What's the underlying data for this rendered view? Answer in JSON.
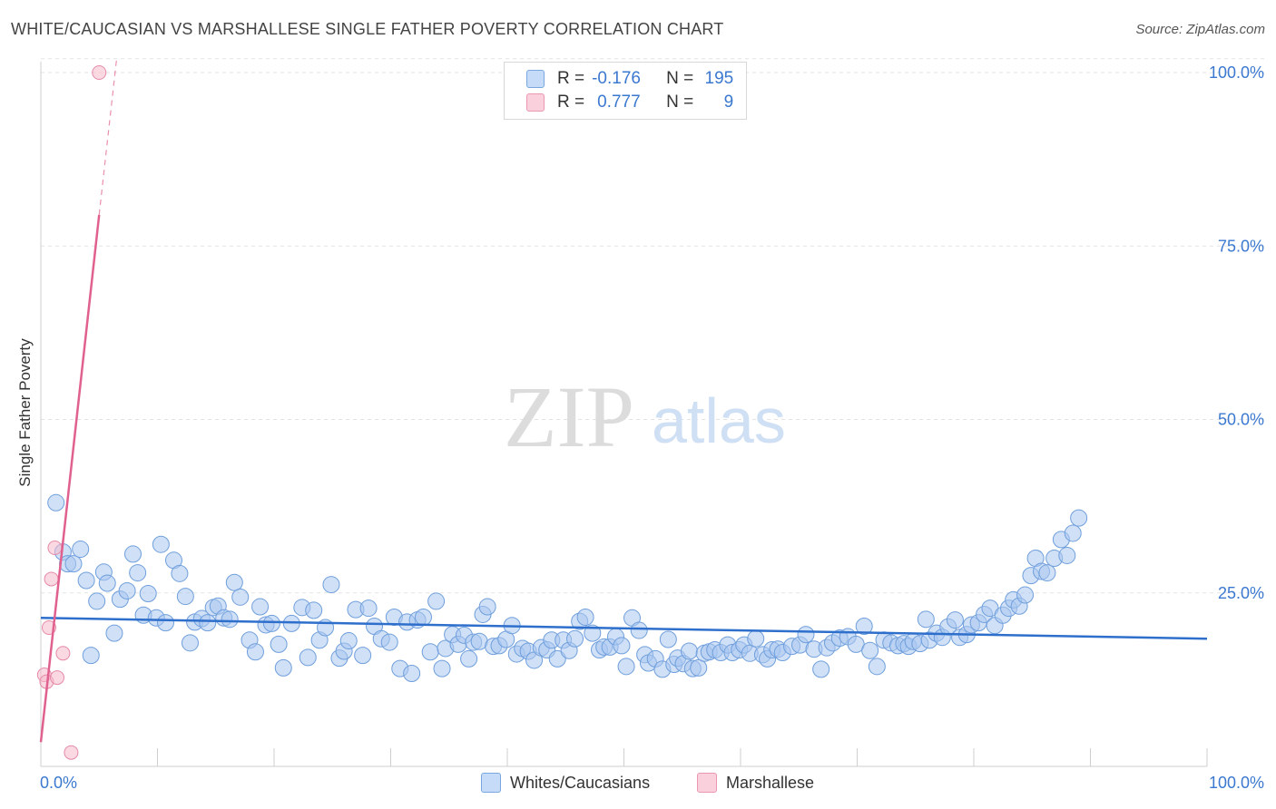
{
  "header": {
    "title": "WHITE/CAUCASIAN VS MARSHALLESE SINGLE FATHER POVERTY CORRELATION CHART",
    "source": "Source: ZipAtlas.com"
  },
  "watermark": {
    "zip": "ZIP",
    "atlas": "atlas"
  },
  "stats": [
    {
      "r_label": "R =",
      "r_value": "-0.176",
      "n_label": "N =",
      "n_value": "195",
      "color": "#a9c7f0"
    },
    {
      "r_label": "R =",
      "r_value": "0.777",
      "n_label": "N =",
      "n_value": "9",
      "color": "#f7b9cc"
    }
  ],
  "legend": [
    {
      "label": "Whites/Caucasians",
      "color": "#a9c7f0"
    },
    {
      "label": "Marshallese",
      "color": "#f7b9cc"
    }
  ],
  "chart_data": {
    "type": "scatter",
    "title": "WHITE/CAUCASIAN VS MARSHALLESE SINGLE FATHER POVERTY CORRELATION CHART",
    "xlabel": "",
    "ylabel": "Single Father Poverty",
    "xlim": [
      0,
      100
    ],
    "ylim": [
      0,
      100
    ],
    "x_tick_labels": [
      "0.0%",
      "100.0%"
    ],
    "y_ticks": [
      25,
      50,
      75,
      100
    ],
    "y_tick_labels": [
      "25.0%",
      "50.0%",
      "75.0%",
      "100.0%"
    ],
    "grid": true,
    "series": [
      {
        "name": "Whites/Caucasians",
        "color": "#a9c7f0",
        "stroke": "#6f9fdc",
        "trend": {
          "x0": 0,
          "y0": 21.4,
          "x1": 100,
          "y1": 18.4,
          "color": "#2f6fcc"
        },
        "points": [
          [
            1.3,
            38
          ],
          [
            1.9,
            30.9
          ],
          [
            2.3,
            29.2
          ],
          [
            2.8,
            29.2
          ],
          [
            3.4,
            31.3
          ],
          [
            3.9,
            26.8
          ],
          [
            4.3,
            16
          ],
          [
            4.8,
            23.8
          ],
          [
            5.4,
            28
          ],
          [
            5.7,
            26.4
          ],
          [
            6.3,
            19.2
          ],
          [
            6.8,
            24.1
          ],
          [
            7.4,
            25.3
          ],
          [
            7.9,
            30.6
          ],
          [
            8.3,
            27.9
          ],
          [
            8.8,
            21.8
          ],
          [
            9.2,
            24.9
          ],
          [
            9.9,
            21.4
          ],
          [
            10.3,
            32
          ],
          [
            10.7,
            20.7
          ],
          [
            11.4,
            29.7
          ],
          [
            11.9,
            27.8
          ],
          [
            12.4,
            24.5
          ],
          [
            12.8,
            17.8
          ],
          [
            13.2,
            20.8
          ],
          [
            13.8,
            21.3
          ],
          [
            14.3,
            20.7
          ],
          [
            14.8,
            22.9
          ],
          [
            15.2,
            23.1
          ],
          [
            15.7,
            21.4
          ],
          [
            16.2,
            21.2
          ],
          [
            16.6,
            26.5
          ],
          [
            17.1,
            24.4
          ],
          [
            17.9,
            18.2
          ],
          [
            18.4,
            16.5
          ],
          [
            18.8,
            23
          ],
          [
            19.3,
            20.4
          ],
          [
            19.8,
            20.6
          ],
          [
            20.4,
            17.6
          ],
          [
            20.8,
            14.2
          ],
          [
            21.5,
            20.6
          ],
          [
            22.4,
            22.9
          ],
          [
            22.9,
            15.7
          ],
          [
            23.4,
            22.5
          ],
          [
            23.9,
            18.2
          ],
          [
            24.4,
            20
          ],
          [
            24.9,
            26.2
          ],
          [
            25.6,
            15.6
          ],
          [
            26,
            16.6
          ],
          [
            26.4,
            18.1
          ],
          [
            27,
            22.6
          ],
          [
            27.6,
            16
          ],
          [
            28.1,
            22.8
          ],
          [
            28.6,
            20.2
          ],
          [
            29.2,
            18.4
          ],
          [
            29.9,
            17.9
          ],
          [
            30.3,
            21.5
          ],
          [
            30.8,
            14.1
          ],
          [
            31.4,
            20.8
          ],
          [
            31.8,
            13.4
          ],
          [
            32.3,
            21.1
          ],
          [
            32.8,
            21.5
          ],
          [
            33.4,
            16.5
          ],
          [
            33.9,
            23.8
          ],
          [
            34.4,
            14.1
          ],
          [
            34.7,
            17
          ],
          [
            35.3,
            19
          ],
          [
            35.8,
            17.6
          ],
          [
            36.3,
            18.9
          ],
          [
            36.7,
            15.5
          ],
          [
            37.1,
            17.9
          ],
          [
            37.6,
            18
          ],
          [
            37.9,
            21.9
          ],
          [
            38.3,
            23
          ],
          [
            38.8,
            17.3
          ],
          [
            39.3,
            17.4
          ],
          [
            39.9,
            18.3
          ],
          [
            40.4,
            20.3
          ],
          [
            40.8,
            16.2
          ],
          [
            41.3,
            17
          ],
          [
            41.8,
            16.6
          ],
          [
            42.3,
            15.3
          ],
          [
            42.9,
            17.1
          ],
          [
            43.4,
            16.8
          ],
          [
            43.8,
            18.2
          ],
          [
            44.3,
            15.5
          ],
          [
            44.8,
            18.2
          ],
          [
            45.3,
            16.7
          ],
          [
            45.8,
            18.4
          ],
          [
            46.2,
            20.9
          ],
          [
            46.7,
            21.5
          ],
          [
            47.3,
            19.2
          ],
          [
            47.9,
            16.8
          ],
          [
            48.3,
            17.2
          ],
          [
            48.8,
            17.2
          ],
          [
            49.3,
            18.7
          ],
          [
            49.8,
            17.4
          ],
          [
            50.2,
            14.4
          ],
          [
            50.7,
            21.4
          ],
          [
            51.3,
            19.6
          ],
          [
            51.8,
            16.1
          ],
          [
            52.1,
            14.9
          ],
          [
            52.7,
            15.5
          ],
          [
            53.3,
            14
          ],
          [
            53.8,
            18.3
          ],
          [
            54.3,
            14.7
          ],
          [
            54.6,
            15.6
          ],
          [
            55.1,
            14.8
          ],
          [
            55.6,
            16.6
          ],
          [
            55.9,
            14.1
          ],
          [
            56.4,
            14.2
          ],
          [
            56.9,
            16.3
          ],
          [
            57.3,
            16.5
          ],
          [
            57.8,
            16.8
          ],
          [
            58.3,
            16.4
          ],
          [
            58.9,
            17.5
          ],
          [
            59.3,
            16.4
          ],
          [
            59.9,
            16.8
          ],
          [
            60.3,
            17.5
          ],
          [
            60.8,
            16.3
          ],
          [
            61.3,
            18.4
          ],
          [
            61.9,
            16.1
          ],
          [
            62.3,
            15.5
          ],
          [
            62.7,
            16.8
          ],
          [
            63.2,
            16.9
          ],
          [
            63.6,
            16.4
          ],
          [
            64.4,
            17.3
          ],
          [
            65.1,
            17.5
          ],
          [
            65.6,
            19
          ],
          [
            66.3,
            16.9
          ],
          [
            66.9,
            14
          ],
          [
            67.4,
            17.1
          ],
          [
            67.9,
            17.8
          ],
          [
            68.5,
            18.5
          ],
          [
            69.2,
            18.7
          ],
          [
            69.9,
            17.6
          ],
          [
            70.6,
            20.2
          ],
          [
            71.1,
            16.7
          ],
          [
            71.7,
            14.4
          ],
          [
            72.3,
            18.2
          ],
          [
            72.9,
            17.8
          ],
          [
            73.5,
            17.4
          ],
          [
            74,
            17.7
          ],
          [
            74.4,
            17.3
          ],
          [
            74.8,
            18
          ],
          [
            75.4,
            17.7
          ],
          [
            75.9,
            21.2
          ],
          [
            76.2,
            18.2
          ],
          [
            76.8,
            19.2
          ],
          [
            77.3,
            18.6
          ],
          [
            77.8,
            20.1
          ],
          [
            78.4,
            21.1
          ],
          [
            78.8,
            18.6
          ],
          [
            79.4,
            19
          ],
          [
            79.8,
            20.4
          ],
          [
            80.4,
            20.7
          ],
          [
            80.9,
            21.9
          ],
          [
            81.4,
            22.8
          ],
          [
            81.8,
            20.3
          ],
          [
            82.5,
            21.8
          ],
          [
            83,
            22.8
          ],
          [
            83.4,
            24
          ],
          [
            83.9,
            23.1
          ],
          [
            84.4,
            24.7
          ],
          [
            84.9,
            27.5
          ],
          [
            85.3,
            30
          ],
          [
            85.8,
            28.1
          ],
          [
            86.3,
            27.9
          ],
          [
            86.9,
            30
          ],
          [
            87.5,
            32.7
          ],
          [
            88,
            30.4
          ],
          [
            88.5,
            33.6
          ],
          [
            89,
            35.8
          ]
        ]
      },
      {
        "name": "Marshallese",
        "color": "#f7b9cc",
        "stroke": "#e58aa8",
        "trend": {
          "x0": 0,
          "y0": 3.5,
          "x1": 5,
          "y1": 79.5,
          "x_dash_end": 6.5,
          "y_dash_end": 102,
          "color": "#e0608e"
        },
        "points": [
          [
            5,
            100
          ],
          [
            1.2,
            31.5
          ],
          [
            0.9,
            27
          ],
          [
            0.7,
            20
          ],
          [
            1.9,
            16.3
          ],
          [
            0.3,
            13.2
          ],
          [
            0.5,
            12.2
          ],
          [
            1.4,
            12.8
          ],
          [
            2.6,
            2
          ]
        ]
      }
    ]
  }
}
